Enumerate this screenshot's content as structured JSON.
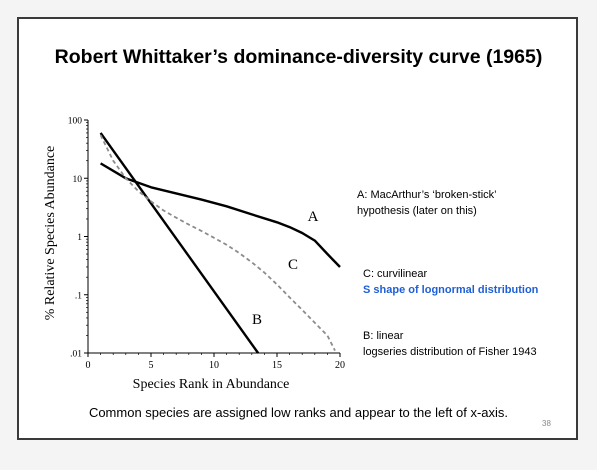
{
  "slide": {
    "title": "Robert Whittaker’s dominance-diversity curve (1965)",
    "footer": "Common species are assigned low ranks and appear to the left of x-axis.",
    "page_number": "38"
  },
  "notes": {
    "a_line1": "A: MacArthur’s ‘broken-stick’",
    "a_line2": "hypothesis (later on this)",
    "c_line1": "C: curvilinear",
    "c_line2": "S shape of lognormal distribution",
    "b_line1": "B: linear",
    "b_line2": "logseries distribution of Fisher 1943"
  },
  "chart_data": {
    "type": "line",
    "xlabel": "Species Rank in Abundance",
    "ylabel": "% Relative Species Abundance",
    "xlim": [
      0,
      20
    ],
    "ylim": [
      0.01,
      100
    ],
    "yscale": "log",
    "xticks": [
      "0",
      "5",
      "10",
      "15",
      "20"
    ],
    "yticks": [
      "100",
      "10",
      "1",
      ".1",
      ".01"
    ],
    "grid": false,
    "series": [
      {
        "name": "A",
        "color": "#000000",
        "style": "solid",
        "x": [
          1,
          3,
          5,
          7,
          9,
          11,
          13,
          15,
          16,
          17,
          18,
          19,
          20
        ],
        "y": [
          18,
          10,
          7,
          5.5,
          4.3,
          3.3,
          2.4,
          1.75,
          1.45,
          1.15,
          0.85,
          0.5,
          0.3
        ]
      },
      {
        "name": "B",
        "color": "#000000",
        "style": "solid",
        "x": [
          1,
          13.5
        ],
        "y": [
          60,
          0.01
        ]
      },
      {
        "name": "C",
        "color": "#8c8c8c",
        "style": "dashed",
        "x": [
          1,
          2,
          3,
          4,
          5,
          6,
          7,
          8,
          9,
          10,
          11,
          12,
          13,
          14,
          15,
          16,
          17,
          18,
          19,
          19.6
        ],
        "y": [
          55,
          20,
          10,
          6,
          4,
          2.8,
          2.1,
          1.6,
          1.25,
          0.95,
          0.72,
          0.52,
          0.36,
          0.24,
          0.15,
          0.09,
          0.055,
          0.033,
          0.02,
          0.011
        ]
      }
    ]
  }
}
